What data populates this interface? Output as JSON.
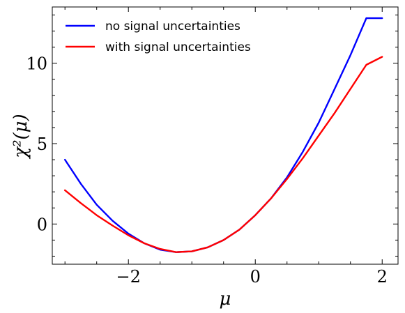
{
  "chart_data": {
    "type": "line",
    "title": "",
    "xlabel": "μ",
    "ylabel": "χ²(μ)",
    "xlim": [
      -3.2,
      2.25
    ],
    "ylim": [
      -2.5,
      13.5
    ],
    "xticks": [
      -2,
      0,
      2
    ],
    "yticks": [
      0,
      5,
      10
    ],
    "xtick_labels": [
      "−2",
      "0",
      "2"
    ],
    "ytick_labels": [
      "0",
      "5",
      "10"
    ],
    "grid": false,
    "legend_position": "top-left",
    "series": [
      {
        "name": "no signal uncertainties",
        "color": "#0000ff",
        "x": [
          -3.0,
          -2.75,
          -2.5,
          -2.25,
          -2.0,
          -1.75,
          -1.5,
          -1.25,
          -1.0,
          -0.75,
          -0.5,
          -0.25,
          0.0,
          0.25,
          0.5,
          0.75,
          1.0,
          1.25,
          1.5,
          1.75,
          2.0
        ],
        "y": [
          4.0,
          2.5,
          1.2,
          0.2,
          -0.6,
          -1.2,
          -1.6,
          -1.75,
          -1.7,
          -1.45,
          -1.0,
          -0.35,
          0.55,
          1.6,
          2.9,
          4.5,
          6.3,
          8.4,
          10.5,
          12.8,
          12.8
        ]
      },
      {
        "name": "with signal uncertainties",
        "color": "#ff0000",
        "x": [
          -3.0,
          -2.75,
          -2.5,
          -2.25,
          -2.0,
          -1.75,
          -1.5,
          -1.25,
          -1.0,
          -0.75,
          -0.5,
          -0.25,
          0.0,
          0.25,
          0.5,
          0.75,
          1.0,
          1.25,
          1.5,
          1.75,
          2.0
        ],
        "y": [
          2.1,
          1.3,
          0.55,
          -0.1,
          -0.7,
          -1.2,
          -1.55,
          -1.75,
          -1.7,
          -1.45,
          -1.0,
          -0.35,
          0.55,
          1.6,
          2.8,
          4.1,
          5.5,
          6.9,
          8.4,
          9.9,
          10.4
        ]
      }
    ]
  }
}
